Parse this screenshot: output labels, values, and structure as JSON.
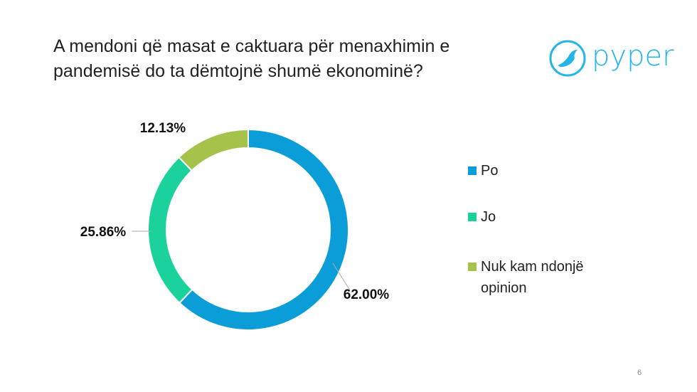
{
  "chart_data": {
    "type": "donut",
    "title": "A mendoni që masat e caktuara për menaxhimin e pandemisë do ta dëmtojnë shumë ekonominë?",
    "categories": [
      "Po",
      "Jo",
      "Nuk kam ndonjë opinion"
    ],
    "values": [
      62.0,
      25.86,
      12.13
    ],
    "value_labels": [
      "62.00%",
      "25.86%",
      "12.13%"
    ],
    "colors": [
      "#0a9dd8",
      "#1bd29d",
      "#a5c34a"
    ],
    "legend": "right"
  },
  "logo": "pyper",
  "page_number": "6"
}
